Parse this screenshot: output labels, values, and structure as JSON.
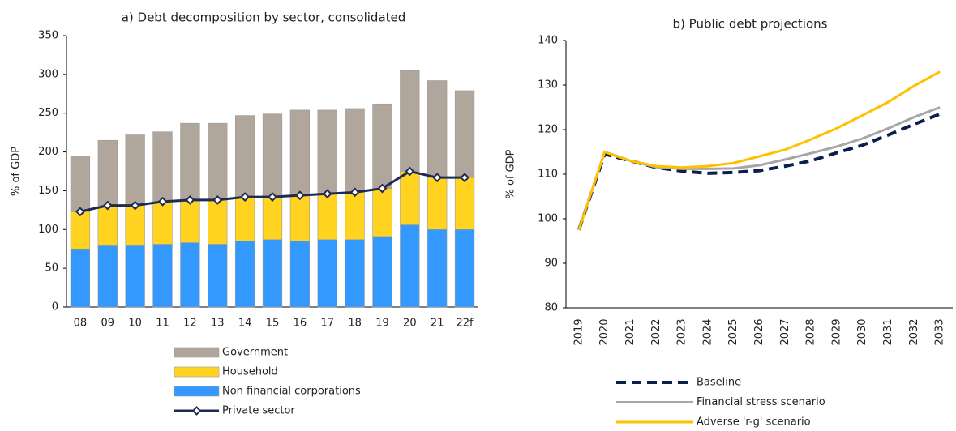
{
  "chart_data": [
    {
      "type": "bar",
      "stacked": true,
      "title": "a) Debt decomposition by sector, consolidated",
      "ylabel": "% of GDP",
      "categories": [
        "08",
        "09",
        "10",
        "11",
        "12",
        "13",
        "14",
        "15",
        "16",
        "17",
        "18",
        "19",
        "20",
        "21",
        "22f"
      ],
      "ylim": [
        0,
        350
      ],
      "yticks": [
        0,
        50,
        100,
        150,
        200,
        250,
        300,
        350
      ],
      "series": [
        {
          "name": "Government",
          "color": "#b1a69c",
          "values": [
            72,
            84,
            91,
            90,
            99,
            99,
            105,
            107,
            110,
            108,
            108,
            109,
            130,
            125,
            112
          ]
        },
        {
          "name": "Household",
          "color": "#ffd320",
          "values": [
            48,
            52,
            52,
            55,
            55,
            57,
            57,
            55,
            59,
            59,
            61,
            62,
            69,
            67,
            67
          ]
        },
        {
          "name": "Non financial corporations",
          "color": "#3399ff",
          "values": [
            75,
            79,
            79,
            81,
            83,
            81,
            85,
            87,
            85,
            87,
            87,
            91,
            106,
            100,
            100
          ]
        },
        {
          "name": "Private sector",
          "type": "line",
          "color": "#1f2a52",
          "values": [
            123,
            131,
            131,
            136,
            138,
            138,
            142,
            142,
            144,
            146,
            148,
            153,
            175,
            167,
            167
          ]
        }
      ]
    },
    {
      "type": "line",
      "title": "b) Public debt projections",
      "ylabel": "% of GDP",
      "categories": [
        "2019",
        "2020",
        "2021",
        "2022",
        "2023",
        "2024",
        "2025",
        "2026",
        "2027",
        "2028",
        "2029",
        "2030",
        "2031",
        "2032",
        "2033"
      ],
      "ylim": [
        80,
        140
      ],
      "yticks": [
        80,
        90,
        100,
        110,
        120,
        130,
        140
      ],
      "series": [
        {
          "name": "Baseline",
          "color": "#0b1f4f",
          "dashed": true,
          "values": [
            97.5,
            114.5,
            113,
            111.5,
            110.7,
            110.2,
            110.4,
            110.8,
            111.8,
            113,
            114.8,
            116.5,
            118.8,
            121.2,
            123.5
          ]
        },
        {
          "name": "Financial stress scenario",
          "color": "#a6a6a6",
          "values": [
            97.5,
            115,
            113,
            111.6,
            111.2,
            111.2,
            111.3,
            112,
            113.3,
            114.7,
            116.2,
            118,
            120.3,
            122.8,
            125
          ]
        },
        {
          "name": "Adverse 'r-g' scenario",
          "color": "#ffc000",
          "values": [
            97.5,
            115,
            113,
            111.8,
            111.5,
            111.8,
            112.5,
            114,
            115.5,
            117.8,
            120.3,
            123.2,
            126.2,
            129.8,
            133
          ]
        }
      ]
    }
  ]
}
